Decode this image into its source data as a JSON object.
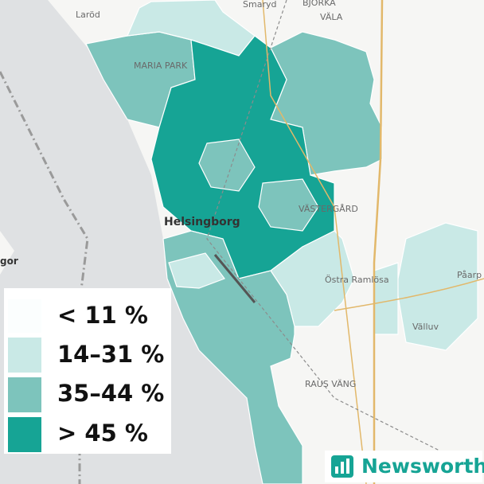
{
  "places": [
    "Laröd",
    "Smaryd",
    "BJÖRKA",
    "VÄLA",
    "MARIA PARK",
    "Helsingborg",
    "VÄSTERGÅRD",
    "Östra Ramlösa",
    "Påarp",
    "Välluv",
    "RAUS VÄNG",
    "gor"
  ],
  "legend": {
    "items": [
      {
        "label": "< 11 %",
        "color": "#fbfefe"
      },
      {
        "label": "14–31 %",
        "color": "#c9e9e6"
      },
      {
        "label": "35–44 %",
        "color": "#7dc4bc"
      },
      {
        "label": "> 45 %",
        "color": "#16a495"
      }
    ]
  },
  "brand": "Newsworthy"
}
